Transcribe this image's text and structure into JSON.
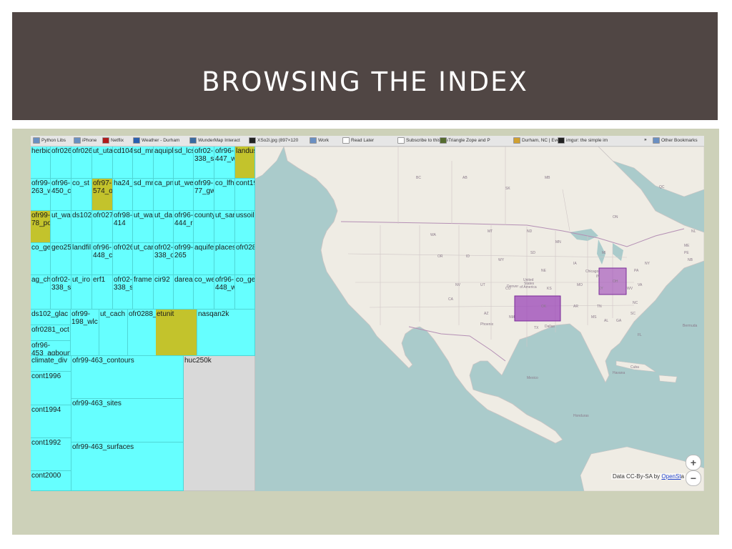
{
  "slide": {
    "title": "BROWSING THE INDEX"
  },
  "bookmarks": [
    {
      "label": "Python Libs",
      "icon": "folder-icon",
      "color": "#6a8fc2"
    },
    {
      "label": "iPhone",
      "icon": "folder-icon",
      "color": "#6a8fc2"
    },
    {
      "label": "Netflix",
      "icon": "netflix-icon",
      "color": "#b01b1b"
    },
    {
      "label": "Weather - Durham",
      "icon": "weather-icon",
      "color": "#2a5fb0"
    },
    {
      "label": "WunderMap Interact",
      "icon": "wundermap-icon",
      "color": "#3a6aa0"
    },
    {
      "label": "XSo2i.jpg (897×120",
      "icon": "image-icon",
      "color": "#222222"
    },
    {
      "label": "Work",
      "icon": "folder-icon",
      "color": "#6a8fc2"
    },
    {
      "label": "Read Later",
      "icon": "page-icon",
      "color": "#ffffff"
    },
    {
      "label": "Subscribe to this fee",
      "icon": "page-icon",
      "color": "#ffffff"
    },
    {
      "label": "Triangle Zope and P",
      "icon": "triangle-icon",
      "color": "#556b2f"
    },
    {
      "label": "Durham, NC | Event",
      "icon": "event-icon",
      "color": "#d0a030"
    },
    {
      "label": "imgur: the simple im",
      "icon": "imgur-icon",
      "color": "#222222"
    },
    {
      "label": "Other Bookmarks",
      "icon": "folder-icon",
      "color": "#6a8fc2"
    }
  ],
  "bookmarks_overflow": "»",
  "treemap": {
    "cells": [
      {
        "label": "herbic"
      },
      {
        "label": "ofr026"
      },
      {
        "label": "ofr026"
      },
      {
        "label": "ut_uta"
      },
      {
        "label": "cd104"
      },
      {
        "label": "sd_mr"
      },
      {
        "label": "aquipl"
      },
      {
        "label": "sd_lcs"
      },
      {
        "label": "ofr02-\n338_s"
      },
      {
        "label": "ofr96-\n447_w"
      },
      {
        "label": "landus"
      },
      {
        "label": "ofr99-\n263_w"
      },
      {
        "label": "ofr96-\n450_c"
      },
      {
        "label": "co_st"
      },
      {
        "label": "ofr97-\n574_o"
      },
      {
        "label": "ha24_"
      },
      {
        "label": "sd_mr"
      },
      {
        "label": "ca_pn"
      },
      {
        "label": "ut_we"
      },
      {
        "label": "ofr99-\n77_gw"
      },
      {
        "label": "co_lfh"
      },
      {
        "label": "cont19"
      },
      {
        "label": "ofr99-\n78_po"
      },
      {
        "label": "ut_wa"
      },
      {
        "label": "ds102"
      },
      {
        "label": "ofr027"
      },
      {
        "label": "ofr98-\n414"
      },
      {
        "label": "ut_wa"
      },
      {
        "label": "ut_da"
      },
      {
        "label": "ofr96-\n444_r"
      },
      {
        "label": "county"
      },
      {
        "label": "ut_sar"
      },
      {
        "label": "ussoil"
      },
      {
        "label": "co_ge"
      },
      {
        "label": "geo25"
      },
      {
        "label": "landfil"
      },
      {
        "label": "ofr96-\n448_c"
      },
      {
        "label": "ofr026"
      },
      {
        "label": "ut_car"
      },
      {
        "label": "ofr02-\n338_o"
      },
      {
        "label": "ofr99-\n265"
      },
      {
        "label": "aquife"
      },
      {
        "label": "places"
      },
      {
        "label": "ofr028"
      },
      {
        "label": "ag_ch"
      },
      {
        "label": "ofr02-\n338_s"
      },
      {
        "label": "ut_iro"
      },
      {
        "label": "erf1"
      },
      {
        "label": "ofr02-\n338_s"
      },
      {
        "label": "frame"
      },
      {
        "label": "cir92"
      },
      {
        "label": "darea"
      },
      {
        "label": "co_we"
      },
      {
        "label": "ofr96-\n448_w"
      },
      {
        "label": "co_ge"
      },
      {
        "label": "ds102_glac"
      },
      {
        "label": "ofr0281_oct"
      },
      {
        "label": "ofr96-\n453_aqboun"
      },
      {
        "label": "ofr99-\n198_wlc"
      },
      {
        "label": "ut_cach"
      },
      {
        "label": "ofr0288_"
      },
      {
        "label": "etunit"
      },
      {
        "label": "nasqan2k"
      },
      {
        "label": "climate_div"
      },
      {
        "label": "cont1996"
      },
      {
        "label": "cont1994"
      },
      {
        "label": "cont1992"
      },
      {
        "label": "cont2000"
      },
      {
        "label": "ofr99-463_contours"
      },
      {
        "label": "ofr99-463_sites"
      },
      {
        "label": "ofr99-463_surfaces"
      },
      {
        "label": "huc250k"
      }
    ]
  },
  "map": {
    "zoom_in": "+",
    "zoom_out": "−",
    "attribution_prefix": "Data CC-By-SA by ",
    "attribution_link": "OpenSt",
    "attribution_suffix": "a",
    "colors": {
      "water": "#aacbcb",
      "land": "#efece4",
      "highlight": "#9b45b8"
    },
    "labels": [
      {
        "t": "BC"
      },
      {
        "t": "AB"
      },
      {
        "t": "SK"
      },
      {
        "t": "MB"
      },
      {
        "t": "ON"
      },
      {
        "t": "QC"
      },
      {
        "t": "WA"
      },
      {
        "t": "MT"
      },
      {
        "t": "ND"
      },
      {
        "t": "MN"
      },
      {
        "t": "OR"
      },
      {
        "t": "ID"
      },
      {
        "t": "SD"
      },
      {
        "t": "WY"
      },
      {
        "t": "NE"
      },
      {
        "t": "IA"
      },
      {
        "t": "NV"
      },
      {
        "t": "UT"
      },
      {
        "t": "CO"
      },
      {
        "t": "KS"
      },
      {
        "t": "MO"
      },
      {
        "t": "CA"
      },
      {
        "t": "AZ"
      },
      {
        "t": "NM"
      },
      {
        "t": "OK"
      },
      {
        "t": "TX"
      },
      {
        "t": "AR"
      },
      {
        "t": "MS"
      },
      {
        "t": "AL"
      },
      {
        "t": "GA"
      },
      {
        "t": "TN"
      },
      {
        "t": "KY"
      },
      {
        "t": "IN"
      },
      {
        "t": "OH"
      },
      {
        "t": "MI"
      },
      {
        "t": "WV"
      },
      {
        "t": "VA"
      },
      {
        "t": "NC"
      },
      {
        "t": "SC"
      },
      {
        "t": "FL"
      },
      {
        "t": "NY"
      },
      {
        "t": "PA"
      },
      {
        "t": "ME"
      },
      {
        "t": "NB"
      },
      {
        "t": "NL"
      },
      {
        "t": "PE"
      },
      {
        "t": "United"
      },
      {
        "t": "States"
      },
      {
        "t": "of America"
      },
      {
        "t": "Chicago"
      },
      {
        "t": "Dallas"
      },
      {
        "t": "Denver"
      },
      {
        "t": "Phoenix"
      },
      {
        "t": "Mexico"
      },
      {
        "t": "Cuba"
      },
      {
        "t": "Honduras"
      },
      {
        "t": "Bermuda"
      },
      {
        "t": "Havana"
      }
    ]
  }
}
